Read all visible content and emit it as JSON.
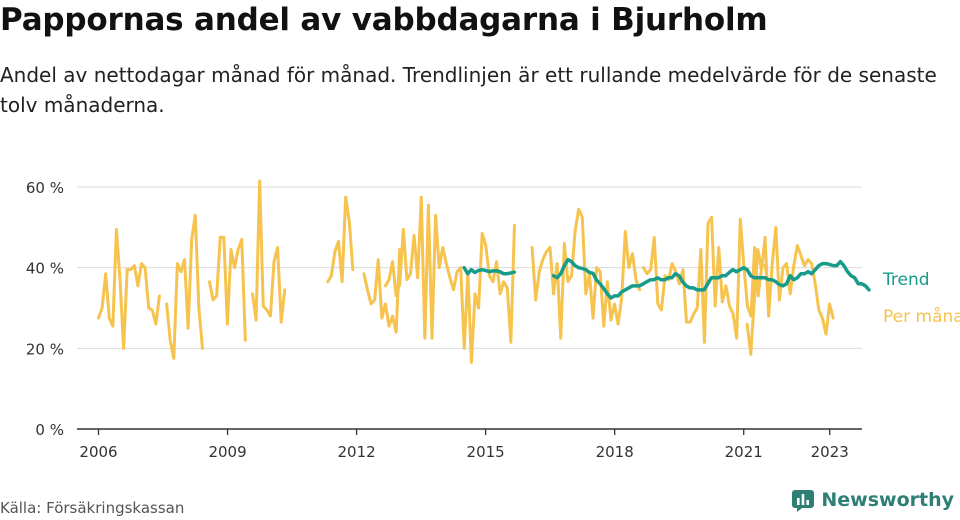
{
  "title": "Pappornas andel av vabbdagarna i Bjurholm",
  "subtitle": "Andel av nettodagar månad för månad. Trendlinjen är ett rullande medelvärde för de senaste tolv månaderna.",
  "source": "Källa: Försäkringskassan",
  "brand": {
    "name": "Newsworthy",
    "icon": "bar-chart-icon"
  },
  "colors": {
    "monthly": "#f7c34f",
    "trend": "#169c89",
    "grid": "#d9d9d9",
    "axis": "#333333",
    "brand": "#2e7f76"
  },
  "chart_data": {
    "type": "line",
    "ylim": [
      0,
      60
    ],
    "xlim": [
      2005.5,
      2023.75
    ],
    "yticks": [
      0,
      20,
      40,
      60
    ],
    "ytick_labels": [
      "0 %",
      "20 %",
      "40 %",
      "60 %"
    ],
    "xticks": [
      2006,
      2009,
      2012,
      2015,
      2018,
      2021,
      2023
    ],
    "xtick_labels": [
      "2006",
      "2009",
      "2012",
      "2015",
      "2018",
      "2021",
      "2023"
    ],
    "grid": true,
    "legend": "end-labels-right",
    "series": [
      {
        "name": "Per månad",
        "color": "#f7c34f",
        "segments": [
          {
            "x_start": 2006.0,
            "values": [
              27.5,
              30,
              38.5,
              27.5,
              25.5,
              49.5,
              37,
              20,
              39.5,
              39.5,
              40.5,
              35.5,
              41,
              40,
              30,
              29.5,
              26,
              33,
              null,
              31,
              22,
              17.5,
              41,
              39,
              42,
              25,
              47,
              53,
              30,
              20
            ]
          },
          {
            "x_start": 2008.58,
            "values": [
              36.5,
              32,
              33,
              47.5,
              47.5,
              26,
              44.5,
              40,
              44.5,
              47,
              22
            ]
          },
          {
            "x_start": 2009.58,
            "values": [
              33.5,
              27,
              61.5,
              30.5,
              29.5,
              28,
              41.5,
              45,
              26.5,
              34.5
            ]
          },
          {
            "x_start": 2011.33,
            "values": [
              36.5,
              38,
              44,
              46.5,
              36.5,
              57.5,
              51.5,
              39.5
            ]
          },
          {
            "x_start": 2012.17,
            "values": [
              38.5,
              34.5,
              31,
              32,
              42,
              27.5,
              31,
              25.5,
              28,
              24,
              44.5
            ]
          },
          {
            "x_start": 2012.67,
            "values": [
              35.5,
              37,
              41.5,
              33,
              36,
              49.5,
              37,
              38.5,
              48,
              37.5,
              57.5,
              22.5,
              55.5,
              22.5,
              53,
              40,
              45,
              41,
              37.5,
              34.5,
              39,
              40,
              20,
              39,
              16.5,
              33.5,
              30,
              48.5,
              45.5,
              38,
              36.5,
              41.5,
              33.5,
              36.5,
              35,
              21.5,
              50.5
            ]
          },
          {
            "x_start": 2016.08,
            "values": [
              45,
              32,
              39,
              42,
              44,
              45,
              33.5,
              41,
              22.5,
              46,
              36.5,
              38,
              49,
              54.5,
              52.5,
              33.5,
              38.5,
              27.5,
              40,
              39,
              25.5,
              36.5,
              27,
              31,
              26,
              32.5,
              49,
              40,
              43.5,
              37,
              34.5
            ]
          },
          {
            "x_start": 2018.67,
            "values": [
              40,
              38.5,
              39.5,
              47.5,
              31,
              29.5,
              38,
              37,
              41,
              39,
              36,
              39.5,
              26.5,
              26.5,
              28.5,
              30,
              44.5,
              21.5,
              51,
              52.5,
              30.5,
              45,
              31.5,
              35.5,
              30.5,
              28.5,
              22.5,
              52,
              40.5,
              30.5,
              28,
              45,
              33,
              40.5,
              40.5,
              33
            ]
          },
          {
            "x_start": 2021.08,
            "values": [
              26,
              18.5,
              32,
              44.5,
              39.5,
              47.5,
              28,
              41,
              50,
              32,
              40,
              41,
              33.5,
              40.5,
              45.5,
              43,
              40.5,
              42,
              41,
              36,
              29.5,
              27.5,
              23.5,
              31,
              27.5
            ]
          }
        ]
      },
      {
        "name": "Trend",
        "color": "#169c89",
        "segments": [
          {
            "x_start": 2014.5,
            "values": [
              40,
              38.5,
              39.5,
              38.8,
              39.3,
              39.5,
              39.3,
              39,
              39.2,
              39.2,
              39,
              38.5,
              38.5,
              38.7,
              38.9
            ]
          },
          {
            "x_start": 2016.58,
            "values": [
              38,
              37.5,
              38.5,
              40.5,
              42,
              41.5,
              40.5,
              40,
              39.8,
              39.5,
              38.8,
              38.6,
              36.9,
              36,
              34.8,
              33.5,
              32.5,
              33,
              33,
              34,
              34.5,
              35,
              35.5,
              35.5,
              35.5,
              36,
              36.5,
              37,
              37,
              37.5,
              37,
              37,
              37.5,
              37.5,
              38.5,
              38,
              36.5,
              35.5,
              35,
              35,
              34.5,
              34.5,
              34.5,
              36,
              37.5,
              37.5,
              37.5,
              38,
              38,
              38.8,
              39.5,
              39,
              39.5,
              40,
              39.5,
              38,
              37.5,
              37.5,
              37.5,
              37.5,
              37,
              37,
              36.5,
              35.8,
              35.5,
              36,
              38,
              37,
              37.5,
              38.5,
              38.5,
              39,
              38.5,
              39.5,
              40.5,
              41,
              41,
              40.8,
              40.5,
              40.5,
              41.5,
              40.5,
              39,
              38,
              37.5,
              36,
              36,
              35.5,
              34.5
            ]
          }
        ]
      }
    ]
  }
}
